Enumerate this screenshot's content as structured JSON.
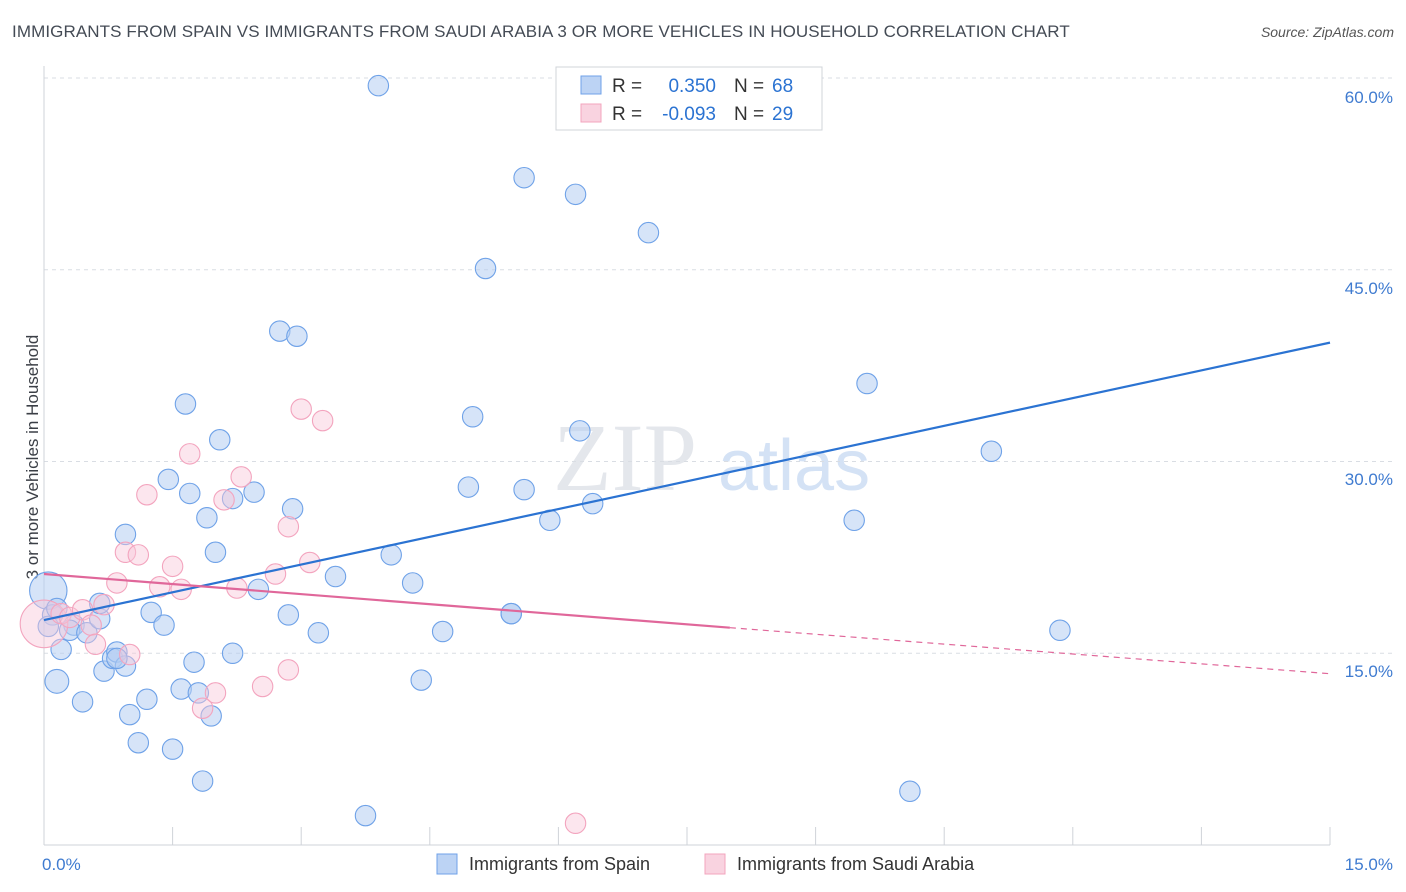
{
  "title": "IMMIGRANTS FROM SPAIN VS IMMIGRANTS FROM SAUDI ARABIA 3 OR MORE VEHICLES IN HOUSEHOLD CORRELATION CHART",
  "source": "Source: ZipAtlas.com",
  "watermark": {
    "zip": "ZIP",
    "atlas": "atlas"
  },
  "colors": {
    "spain": "#6fa2e8",
    "spain_line": "#2b73d2",
    "saudi": "#f3a4be",
    "saudi_line": "#e0679a",
    "axis_text": "#3f7bd0",
    "grid": "#d9dde3"
  },
  "chart_data": {
    "type": "scatter",
    "xlabel": "",
    "ylabel": "3 or more Vehicles in Household",
    "xlim": [
      0,
      15
    ],
    "ylim": [
      0,
      60
    ],
    "x_tick_labels": [
      "0.0%",
      "15.0%"
    ],
    "y_ticks": [
      15,
      30,
      45,
      60
    ],
    "y_tick_labels": [
      "15.0%",
      "30.0%",
      "45.0%",
      "60.0%"
    ],
    "legend_position": "bottom",
    "stats": [
      {
        "swatch": "spain",
        "r_label": "R =",
        "r_value": "0.350",
        "n_label": "N =",
        "n_value": "68"
      },
      {
        "swatch": "saudi",
        "r_label": "R =",
        "r_value": "-0.093",
        "n_label": "N =",
        "n_value": "29"
      }
    ],
    "series": [
      {
        "name": "Immigrants from Spain",
        "color": "#6fa2e8",
        "trend": {
          "x0": 0.0,
          "y0": 17.6,
          "x1": 15.0,
          "y1": 39.3
        },
        "points": [
          [
            0.05,
            19.9,
            2.2
          ],
          [
            0.1,
            18.0,
            1.2
          ],
          [
            0.15,
            18.5,
            1.2
          ],
          [
            0.15,
            12.8,
            1.4
          ],
          [
            0.2,
            15.3,
            1.2
          ],
          [
            0.35,
            17.2,
            1.2
          ],
          [
            0.3,
            16.8,
            1.2
          ],
          [
            0.5,
            16.6,
            1.2
          ],
          [
            0.45,
            11.2,
            1.2
          ],
          [
            0.65,
            17.7,
            1.2
          ],
          [
            0.65,
            18.9,
            1.2
          ],
          [
            0.7,
            13.6,
            1.2
          ],
          [
            0.8,
            14.6,
            1.2
          ],
          [
            0.85,
            15.1,
            1.2
          ],
          [
            0.95,
            14.0,
            1.2
          ],
          [
            1.0,
            10.2,
            1.2
          ],
          [
            1.1,
            8.0,
            1.2
          ],
          [
            1.2,
            11.4,
            1.2
          ],
          [
            1.25,
            18.2,
            1.2
          ],
          [
            1.4,
            17.2,
            1.2
          ],
          [
            1.45,
            28.6,
            1.2
          ],
          [
            1.5,
            7.5,
            1.2
          ],
          [
            1.6,
            12.2,
            1.2
          ],
          [
            1.65,
            34.5,
            1.2
          ],
          [
            1.7,
            27.5,
            1.2
          ],
          [
            1.75,
            14.3,
            1.2
          ],
          [
            1.8,
            11.9,
            1.2
          ],
          [
            1.85,
            5.0,
            1.2
          ],
          [
            1.9,
            25.6,
            1.2
          ],
          [
            1.95,
            10.1,
            1.2
          ],
          [
            2.0,
            22.9,
            1.2
          ],
          [
            2.05,
            31.7,
            1.2
          ],
          [
            2.2,
            27.1,
            1.2
          ],
          [
            2.2,
            15.0,
            1.2
          ],
          [
            2.45,
            27.6,
            1.2
          ],
          [
            2.5,
            20.0,
            1.2
          ],
          [
            2.75,
            40.2,
            1.2
          ],
          [
            2.85,
            18.0,
            1.2
          ],
          [
            2.9,
            26.3,
            1.2
          ],
          [
            2.95,
            39.8,
            1.2
          ],
          [
            3.2,
            16.6,
            1.2
          ],
          [
            3.4,
            21.0,
            1.2
          ],
          [
            3.75,
            2.3,
            1.2
          ],
          [
            3.9,
            59.4,
            1.2
          ],
          [
            4.05,
            22.7,
            1.2
          ],
          [
            4.3,
            20.5,
            1.2
          ],
          [
            4.4,
            12.9,
            1.2
          ],
          [
            4.65,
            16.7,
            1.2
          ],
          [
            4.95,
            28.0,
            1.2
          ],
          [
            5.0,
            33.5,
            1.2
          ],
          [
            5.15,
            45.1,
            1.2
          ],
          [
            5.45,
            18.1,
            1.2
          ],
          [
            5.45,
            18.1,
            1.2
          ],
          [
            5.6,
            27.8,
            1.2
          ],
          [
            5.6,
            52.2,
            1.2
          ],
          [
            5.9,
            25.4,
            1.2
          ],
          [
            6.2,
            50.9,
            1.2
          ],
          [
            6.25,
            32.4,
            1.2
          ],
          [
            6.4,
            26.7,
            1.2
          ],
          [
            7.05,
            47.9,
            1.2
          ],
          [
            9.45,
            25.4,
            1.2
          ],
          [
            9.6,
            36.1,
            1.2
          ],
          [
            10.1,
            4.2,
            1.2
          ],
          [
            11.05,
            30.8,
            1.2
          ],
          [
            11.85,
            16.8,
            1.2
          ],
          [
            0.05,
            17.1,
            1.2
          ],
          [
            0.95,
            24.3,
            1.2
          ],
          [
            0.85,
            14.6,
            1.2
          ]
        ]
      },
      {
        "name": "Immigrants from Saudi Arabia",
        "color": "#f3a4be",
        "trend": {
          "x0": 0.0,
          "y0": 21.2,
          "x1": 8.0,
          "y1": 17.0,
          "dash_x1": 15.0,
          "dash_y1": 13.4
        },
        "points": [
          [
            0.0,
            17.3,
            2.8
          ],
          [
            0.2,
            18.1,
            1.2
          ],
          [
            0.3,
            17.8,
            1.2
          ],
          [
            0.45,
            18.4,
            1.2
          ],
          [
            0.55,
            17.2,
            1.2
          ],
          [
            0.6,
            15.7,
            1.2
          ],
          [
            0.7,
            18.8,
            1.2
          ],
          [
            0.85,
            20.5,
            1.2
          ],
          [
            0.95,
            22.9,
            1.2
          ],
          [
            1.1,
            22.7,
            1.2
          ],
          [
            1.2,
            27.4,
            1.2
          ],
          [
            1.35,
            20.2,
            1.2
          ],
          [
            1.5,
            21.8,
            1.2
          ],
          [
            1.6,
            20.0,
            1.2
          ],
          [
            1.7,
            30.6,
            1.2
          ],
          [
            1.85,
            10.7,
            1.2
          ],
          [
            2.0,
            11.9,
            1.2
          ],
          [
            2.1,
            27.0,
            1.2
          ],
          [
            2.25,
            20.1,
            1.2
          ],
          [
            2.3,
            28.8,
            1.2
          ],
          [
            2.55,
            12.4,
            1.2
          ],
          [
            2.7,
            21.2,
            1.2
          ],
          [
            2.85,
            13.7,
            1.2
          ],
          [
            2.85,
            24.9,
            1.2
          ],
          [
            3.0,
            34.1,
            1.2
          ],
          [
            3.1,
            22.1,
            1.2
          ],
          [
            3.25,
            33.2,
            1.2
          ],
          [
            6.2,
            1.7,
            1.2
          ],
          [
            1.0,
            14.9,
            1.2
          ]
        ]
      }
    ]
  }
}
